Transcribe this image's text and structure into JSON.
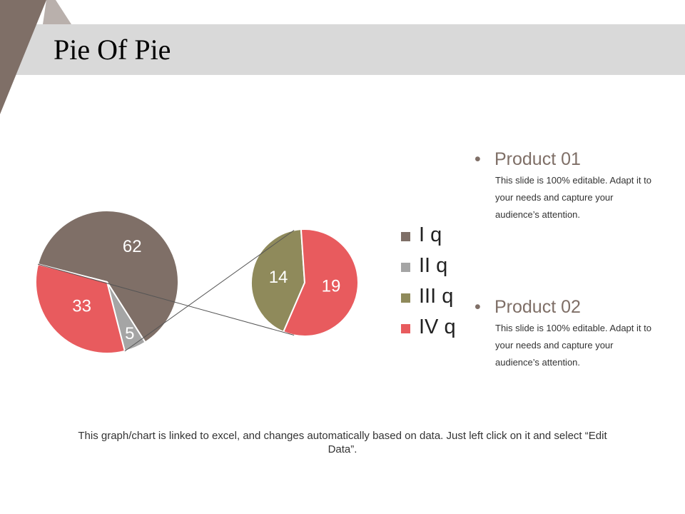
{
  "title": "Pie Of Pie",
  "colors": {
    "brown": "#7f6f67",
    "gray": "#a5a5a5",
    "olive": "#8f8a5b",
    "red": "#e85b5e",
    "title_bar": "#d9d9d9"
  },
  "chart_data": {
    "type": "pie",
    "subtype": "pie-of-pie",
    "main_pie": {
      "slices": [
        {
          "label": "62",
          "value": 62,
          "color": "#7f6f67"
        },
        {
          "label": "5",
          "value": 5,
          "color": "#a5a5a5"
        },
        {
          "label": "33",
          "value": 33,
          "color": "#e85b5e"
        }
      ]
    },
    "secondary_pie": {
      "slices": [
        {
          "label": "14",
          "value": 14,
          "color": "#8f8a5b"
        },
        {
          "label": "19",
          "value": 19,
          "color": "#e85b5e"
        }
      ]
    },
    "legend": [
      {
        "label": "I q",
        "color": "#7f6f67"
      },
      {
        "label": "II q",
        "color": "#a5a5a5"
      },
      {
        "label": "III q",
        "color": "#8f8a5b"
      },
      {
        "label": "IV q",
        "color": "#e85b5e"
      }
    ]
  },
  "products": [
    {
      "name": "Product 01",
      "bullet": "•",
      "description": "This slide is 100% editable. Adapt it to your needs and capture your audience’s attention."
    },
    {
      "name": "Product 02",
      "bullet": "•",
      "description": "This slide is 100% editable. Adapt it to your needs and capture your audience’s attention."
    }
  ],
  "footer": "This graph/chart is linked to excel, and changes automatically based on data. Just left click on it and select “Edit Data”."
}
